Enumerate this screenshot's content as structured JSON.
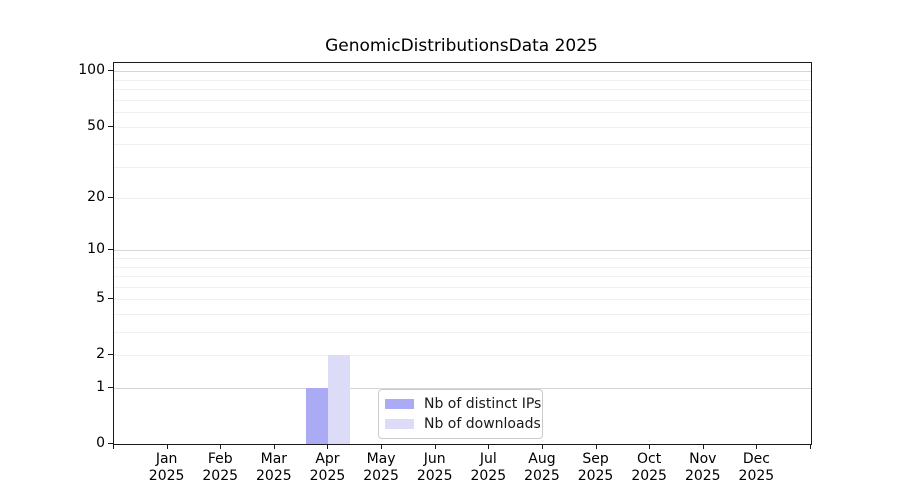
{
  "chart_data": {
    "type": "bar",
    "title": "GenomicDistributionsData 2025",
    "x_axis": {
      "categories": [
        "Jan 2025",
        "Feb 2025",
        "Mar 2025",
        "Apr 2025",
        "May 2025",
        "Jun 2025",
        "Jul 2025",
        "Aug 2025",
        "Sep 2025",
        "Oct 2025",
        "Nov 2025",
        "Dec 2025"
      ],
      "month_labels": [
        "Jan",
        "Feb",
        "Mar",
        "Apr",
        "May",
        "Jun",
        "Jul",
        "Aug",
        "Sep",
        "Oct",
        "Nov",
        "Dec"
      ],
      "year_label": "2025"
    },
    "y_axis": {
      "scale": "log1p",
      "tick_values": [
        0,
        1,
        2,
        5,
        10,
        20,
        50,
        100
      ],
      "tick_labels": [
        "0",
        "1",
        "2",
        "5",
        "10",
        "20",
        "50",
        "100"
      ],
      "major_gridlines": [
        1,
        10,
        100
      ],
      "minor_gridlines": [
        2,
        3,
        4,
        5,
        6,
        7,
        8,
        9,
        20,
        30,
        40,
        50,
        60,
        70,
        80,
        90
      ],
      "range": [
        0,
        111
      ],
      "grid": true
    },
    "series": [
      {
        "name": "Nb of distinct IPs",
        "color": "#aaaaf5",
        "values": [
          0,
          0,
          0,
          1,
          0,
          0,
          0,
          0,
          0,
          0,
          0,
          0
        ]
      },
      {
        "name": "Nb of downloads",
        "color": "#dcdcf8",
        "values": [
          0,
          0,
          0,
          2,
          0,
          0,
          0,
          0,
          0,
          0,
          0,
          0
        ]
      }
    ],
    "legend": {
      "position": "lower center",
      "items": [
        {
          "label": "Nb of distinct IPs",
          "color": "#aaaaf5"
        },
        {
          "label": "Nb of downloads",
          "color": "#dcdcf8"
        }
      ]
    }
  },
  "colors": {
    "background": "#ffffff",
    "axis": "#1a1a1a",
    "major_grid": "#d6d6d6",
    "minor_grid": "#f0f0f0",
    "text": "#000000",
    "legend_border": "#cbcbcb"
  }
}
